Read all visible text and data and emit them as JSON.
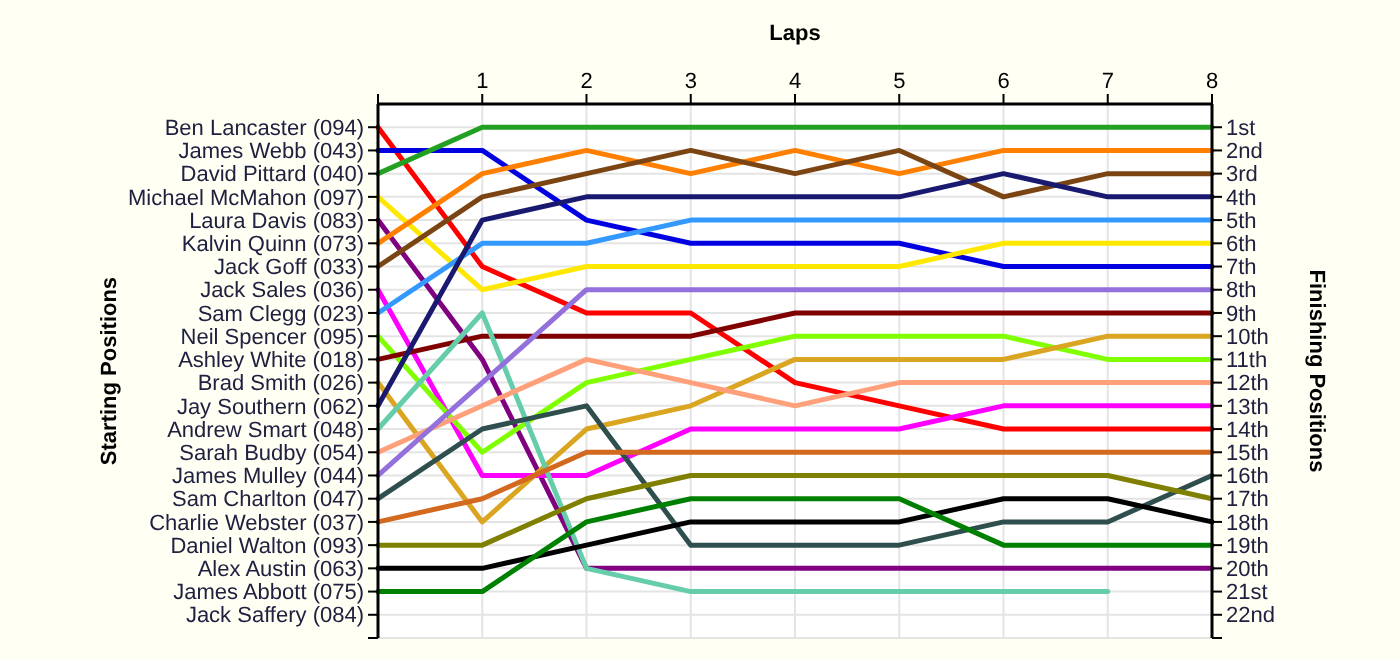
{
  "chart_data": {
    "type": "line",
    "xlabel": "Laps",
    "annotations": [
      "Starting Positions"
    ],
    "y2label": "Finishing Positions",
    "x": [
      0,
      1,
      2,
      3,
      4,
      5,
      6,
      7,
      8
    ],
    "xlim": [
      0,
      8
    ],
    "xticks": [
      {
        "value": 0,
        "label": null
      },
      1,
      2,
      3,
      4,
      5,
      6,
      7,
      8
    ],
    "y_categories": [
      "Ben Lancaster (094)",
      "James Webb (043)",
      "David Pittard (040)",
      "Michael McMahon (097)",
      "Laura Davis (083)",
      "Kalvin Quinn (073)",
      "Jack Goff (033)",
      "Jack Sales (036)",
      "Sam Clegg (023)",
      "Neil Spencer (095)",
      "Ashley White (018)",
      "Brad Smith (026)",
      "Jay Southern (062)",
      "Andrew Smart (048)",
      "Sarah Budby (054)",
      "James Mulley (044)",
      "Sam Charlton (047)",
      "Charlie Webster (037)",
      "Daniel Walton (093)",
      "Alex Austin (063)",
      "James Abbott (075)",
      "Jack Saffery (084)"
    ],
    "y2lim": [
      23,
      0
    ],
    "y2ticks": [
      {
        "value": 1,
        "label": "1st"
      },
      {
        "value": 2,
        "label": "2nd"
      },
      {
        "value": 3,
        "label": "3rd"
      },
      {
        "value": 4,
        "label": "4th"
      },
      {
        "value": 5,
        "label": "5th"
      },
      {
        "value": 6,
        "label": "6th"
      },
      {
        "value": 7,
        "label": "7th"
      },
      {
        "value": 8,
        "label": "8th"
      },
      {
        "value": 9,
        "label": "9th"
      },
      {
        "value": 10,
        "label": "10th"
      },
      {
        "value": 11,
        "label": "11th"
      },
      {
        "value": 12,
        "label": "12th"
      },
      {
        "value": 13,
        "label": "13th"
      },
      {
        "value": 14,
        "label": "14th"
      },
      {
        "value": 15,
        "label": "15th"
      },
      {
        "value": 16,
        "label": "16th"
      },
      {
        "value": 17,
        "label": "17th"
      },
      {
        "value": 18,
        "label": "18th"
      },
      {
        "value": 19,
        "label": "19th"
      },
      {
        "value": 20,
        "label": "20th"
      },
      {
        "value": 21,
        "label": "21st"
      },
      {
        "value": 22,
        "label": "22nd"
      },
      {
        "value": 23,
        "label": null
      }
    ],
    "grid": true,
    "marker": "none",
    "line_style": "solid",
    "series": [
      {
        "axis": "y2",
        "color": "#ff0000",
        "values": [
          1,
          7,
          9,
          9,
          12,
          13,
          14,
          14,
          14
        ]
      },
      {
        "axis": "y2",
        "color": "#0000e0",
        "values": [
          2,
          2,
          5,
          6,
          6,
          6,
          7,
          7,
          7
        ]
      },
      {
        "axis": "y2",
        "color": "#22a022",
        "values": [
          3,
          1,
          1,
          1,
          1,
          1,
          1,
          1,
          1
        ]
      },
      {
        "axis": "y2",
        "color": "#ffe800",
        "values": [
          4,
          8,
          7,
          7,
          7,
          7,
          6,
          6,
          6
        ]
      },
      {
        "axis": "y2",
        "color": "#800080",
        "values": [
          5,
          11,
          20,
          20,
          20,
          20,
          20,
          20,
          20
        ]
      },
      {
        "axis": "y2",
        "color": "#ff8000",
        "values": [
          6,
          3,
          2,
          3,
          2,
          3,
          2,
          2,
          2
        ]
      },
      {
        "axis": "y2",
        "color": "#7b4513",
        "values": [
          7,
          4,
          3,
          2,
          3,
          2,
          4,
          3,
          3
        ]
      },
      {
        "axis": "y2",
        "color": "#ff00ff",
        "values": [
          8,
          16,
          16,
          14,
          14,
          14,
          13,
          13,
          13
        ]
      },
      {
        "axis": "y2",
        "color": "#3399ff",
        "values": [
          9,
          6,
          6,
          5,
          5,
          5,
          5,
          5,
          5
        ]
      },
      {
        "axis": "y2",
        "color": "#80ff00",
        "values": [
          10,
          15,
          12,
          11,
          10,
          10,
          10,
          11,
          11
        ]
      },
      {
        "axis": "y2",
        "color": "#800000",
        "values": [
          11,
          10,
          10,
          10,
          9,
          9,
          9,
          9,
          9
        ]
      },
      {
        "axis": "y2",
        "color": "#daa520",
        "values": [
          12,
          18,
          14,
          13,
          11,
          11,
          11,
          10,
          10
        ]
      },
      {
        "axis": "y2",
        "color": "#191970",
        "values": [
          13,
          5,
          4,
          4,
          4,
          4,
          3,
          4,
          4
        ]
      },
      {
        "axis": "y2",
        "color": "#66cdaa",
        "values": [
          14,
          9,
          20,
          21,
          21,
          21,
          21,
          21,
          null
        ]
      },
      {
        "axis": "y2",
        "color": "#ffa07a",
        "values": [
          15,
          13,
          11,
          12,
          13,
          12,
          12,
          12,
          12
        ]
      },
      {
        "axis": "y2",
        "color": "#9370db",
        "values": [
          16,
          12,
          8,
          8,
          8,
          8,
          8,
          8,
          8
        ]
      },
      {
        "axis": "y2",
        "color": "#2f4f4f",
        "values": [
          17,
          14,
          13,
          19,
          19,
          19,
          18,
          18,
          16
        ]
      },
      {
        "axis": "y2",
        "color": "#d2691e",
        "values": [
          18,
          17,
          15,
          15,
          15,
          15,
          15,
          15,
          15
        ]
      },
      {
        "axis": "y2",
        "color": "#808000",
        "values": [
          19,
          19,
          17,
          16,
          16,
          16,
          16,
          16,
          17
        ]
      },
      {
        "axis": "y2",
        "color": "#000000",
        "values": [
          20,
          20,
          19,
          18,
          18,
          18,
          17,
          17,
          18
        ]
      },
      {
        "axis": "y2",
        "color": "#008000",
        "values": [
          21,
          21,
          18,
          17,
          17,
          17,
          19,
          19,
          19
        ]
      }
    ]
  }
}
